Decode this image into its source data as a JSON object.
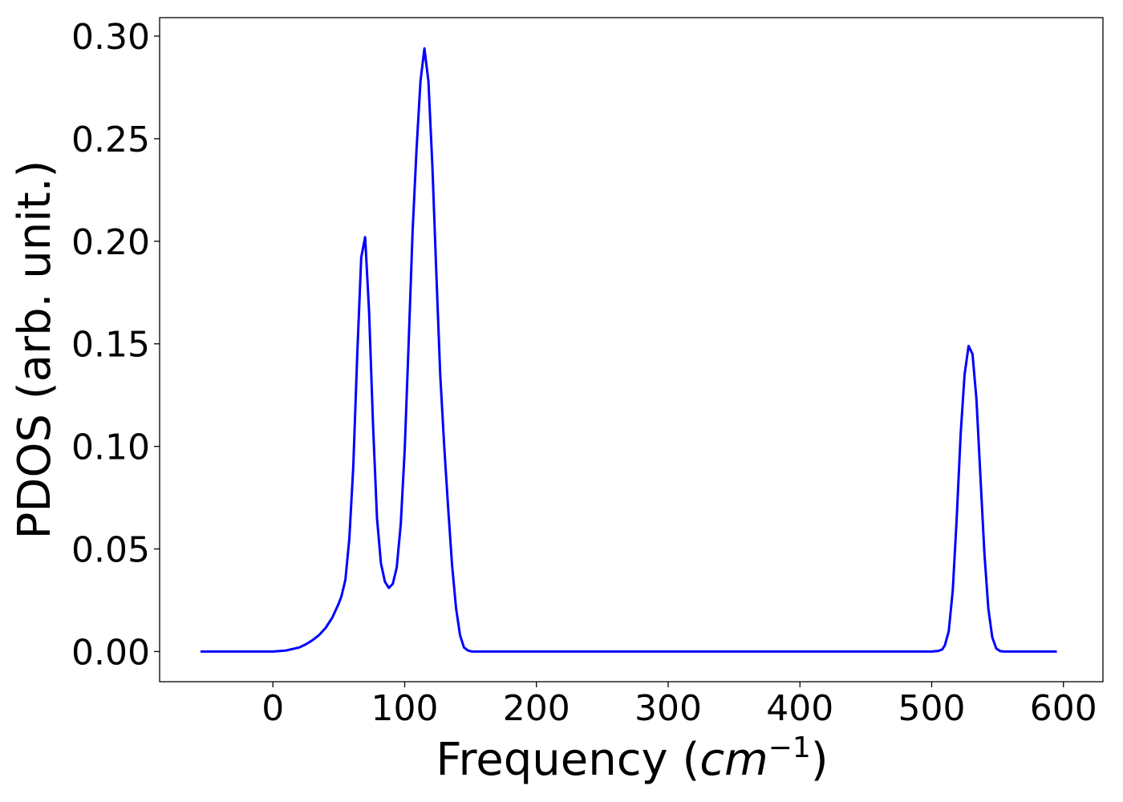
{
  "chart_data": {
    "type": "line",
    "title": "",
    "xlabel": "Frequency (",
    "xlabel_math": "cm",
    "xlabel_sup": "−1",
    "xlabel_close": ")",
    "ylabel": "PDOS (arb. unit.)",
    "xlim": [
      -86,
      630
    ],
    "ylim": [
      -0.0147,
      0.309
    ],
    "xticks": [
      0,
      100,
      200,
      300,
      400,
      500,
      600
    ],
    "xtick_labels": [
      "0",
      "100",
      "200",
      "300",
      "400",
      "500",
      "600"
    ],
    "yticks": [
      0.0,
      0.05,
      0.1,
      0.15,
      0.2,
      0.25,
      0.3
    ],
    "ytick_labels": [
      "0.00",
      "0.05",
      "0.10",
      "0.15",
      "0.20",
      "0.25",
      "0.30"
    ],
    "grid": false,
    "line_color": "#0000ff",
    "series": [
      {
        "x": [
          -55,
          -40,
          -20,
          0,
          10,
          20,
          25,
          30,
          35,
          40,
          45,
          50,
          52,
          55,
          58,
          61,
          64,
          67,
          70,
          73,
          76,
          79,
          82,
          85,
          88,
          91,
          94,
          97,
          100,
          103,
          106,
          109,
          112,
          115,
          118,
          121,
          124,
          127,
          130,
          133,
          136,
          139,
          142,
          145,
          148,
          151,
          154,
          160,
          200,
          300,
          400,
          500,
          505,
          508,
          510,
          513,
          516,
          519,
          522,
          525,
          528,
          531,
          534,
          537,
          540,
          543,
          546,
          549,
          552,
          555,
          560,
          595
        ],
        "y": [
          0,
          0,
          0,
          0,
          0.0005,
          0.002,
          0.0035,
          0.0055,
          0.008,
          0.0115,
          0.0165,
          0.0235,
          0.027,
          0.035,
          0.055,
          0.09,
          0.145,
          0.192,
          0.202,
          0.165,
          0.11,
          0.065,
          0.043,
          0.034,
          0.031,
          0.033,
          0.041,
          0.062,
          0.098,
          0.15,
          0.205,
          0.245,
          0.278,
          0.294,
          0.278,
          0.237,
          0.185,
          0.135,
          0.1,
          0.07,
          0.042,
          0.021,
          0.008,
          0.002,
          0.0005,
          0,
          0,
          0,
          0,
          0,
          0,
          0,
          0.0003,
          0.001,
          0.003,
          0.01,
          0.03,
          0.065,
          0.106,
          0.135,
          0.149,
          0.145,
          0.123,
          0.085,
          0.048,
          0.021,
          0.007,
          0.0015,
          0.0002,
          0,
          0,
          0
        ]
      }
    ]
  }
}
